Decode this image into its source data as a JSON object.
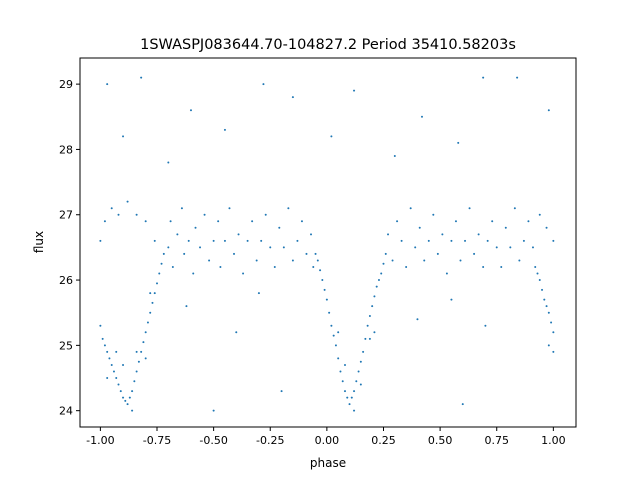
{
  "chart_data": {
    "type": "scatter",
    "title": "1SWASPJ083644.70-104827.2 Period 35410.58203s",
    "xlabel": "phase",
    "ylabel": "flux",
    "xlim": [
      -1.09,
      1.1
    ],
    "ylim": [
      23.75,
      29.4
    ],
    "xticks": [
      "-1.00",
      "-0.75",
      "-0.50",
      "-0.25",
      "0.00",
      "0.25",
      "0.50",
      "0.75",
      "1.00"
    ],
    "xtick_values": [
      -1.0,
      -0.75,
      -0.5,
      -0.25,
      0.0,
      0.25,
      0.5,
      0.75,
      1.0
    ],
    "yticks": [
      "24",
      "25",
      "26",
      "27",
      "28",
      "29"
    ],
    "ytick_values": [
      24,
      25,
      26,
      27,
      28,
      29
    ],
    "grid": false,
    "marker_color": "#1f77b4",
    "points": [
      [
        -1.0,
        25.3
      ],
      [
        -0.99,
        25.1
      ],
      [
        -0.98,
        25.0
      ],
      [
        -0.97,
        24.9
      ],
      [
        -0.96,
        24.8
      ],
      [
        -0.95,
        24.7
      ],
      [
        -0.94,
        24.6
      ],
      [
        -0.93,
        24.5
      ],
      [
        -0.92,
        24.4
      ],
      [
        -0.91,
        24.3
      ],
      [
        -0.9,
        24.2
      ],
      [
        -0.89,
        24.15
      ],
      [
        -0.88,
        24.1
      ],
      [
        -0.87,
        24.2
      ],
      [
        -0.86,
        24.3
      ],
      [
        -0.85,
        24.45
      ],
      [
        -0.84,
        24.6
      ],
      [
        -0.83,
        24.75
      ],
      [
        -0.82,
        24.9
      ],
      [
        -0.81,
        25.05
      ],
      [
        -0.8,
        25.2
      ],
      [
        -0.79,
        25.35
      ],
      [
        -0.78,
        25.5
      ],
      [
        -0.77,
        25.65
      ],
      [
        -0.76,
        25.8
      ],
      [
        -0.75,
        25.95
      ],
      [
        -0.74,
        26.1
      ],
      [
        -0.73,
        26.25
      ],
      [
        -0.72,
        26.4
      ],
      [
        -0.97,
        24.5
      ],
      [
        -0.93,
        24.9
      ],
      [
        -0.9,
        24.7
      ],
      [
        -0.86,
        24.0
      ],
      [
        -0.84,
        24.9
      ],
      [
        -0.8,
        24.8
      ],
      [
        -0.78,
        25.8
      ],
      [
        -0.05,
        26.4
      ],
      [
        -0.04,
        26.3
      ],
      [
        -0.03,
        26.15
      ],
      [
        -0.02,
        26.0
      ],
      [
        -0.01,
        25.85
      ],
      [
        0.0,
        25.7
      ],
      [
        0.01,
        25.5
      ],
      [
        0.02,
        25.3
      ],
      [
        0.03,
        25.15
      ],
      [
        0.04,
        25.0
      ],
      [
        0.05,
        24.8
      ],
      [
        0.06,
        24.6
      ],
      [
        0.07,
        24.45
      ],
      [
        0.08,
        24.3
      ],
      [
        0.09,
        24.2
      ],
      [
        0.1,
        24.1
      ],
      [
        0.11,
        24.2
      ],
      [
        0.12,
        24.3
      ],
      [
        0.13,
        24.45
      ],
      [
        0.14,
        24.6
      ],
      [
        0.15,
        24.75
      ],
      [
        0.16,
        24.9
      ],
      [
        0.17,
        25.1
      ],
      [
        0.18,
        25.3
      ],
      [
        0.19,
        25.45
      ],
      [
        0.2,
        25.6
      ],
      [
        0.21,
        25.75
      ],
      [
        0.22,
        25.9
      ],
      [
        0.23,
        26.0
      ],
      [
        0.24,
        26.1
      ],
      [
        0.25,
        26.25
      ],
      [
        0.26,
        26.4
      ],
      [
        0.05,
        25.2
      ],
      [
        0.08,
        24.7
      ],
      [
        0.12,
        24.0
      ],
      [
        0.15,
        24.4
      ],
      [
        0.19,
        25.1
      ],
      [
        0.21,
        25.2
      ],
      [
        0.92,
        26.2
      ],
      [
        0.93,
        26.1
      ],
      [
        0.94,
        26.0
      ],
      [
        0.95,
        25.85
      ],
      [
        0.96,
        25.7
      ],
      [
        0.97,
        25.6
      ],
      [
        0.98,
        25.5
      ],
      [
        0.99,
        25.35
      ],
      [
        1.0,
        25.2
      ],
      [
        0.98,
        25.0
      ],
      [
        1.0,
        24.9
      ],
      [
        -1.0,
        26.6
      ],
      [
        -0.98,
        26.9
      ],
      [
        -0.95,
        27.1
      ],
      [
        -0.92,
        27.0
      ],
      [
        -0.88,
        27.2
      ],
      [
        -0.84,
        27.0
      ],
      [
        -0.8,
        26.9
      ],
      [
        -0.76,
        26.6
      ],
      [
        -0.7,
        26.5
      ],
      [
        -0.69,
        26.9
      ],
      [
        -0.68,
        26.2
      ],
      [
        -0.66,
        26.7
      ],
      [
        -0.64,
        27.1
      ],
      [
        -0.63,
        26.4
      ],
      [
        -0.61,
        26.6
      ],
      [
        -0.59,
        26.1
      ],
      [
        -0.58,
        26.8
      ],
      [
        -0.56,
        26.5
      ],
      [
        -0.54,
        27.0
      ],
      [
        -0.52,
        26.3
      ],
      [
        -0.5,
        26.6
      ],
      [
        -0.48,
        26.9
      ],
      [
        -0.47,
        26.2
      ],
      [
        -0.45,
        26.6
      ],
      [
        -0.43,
        27.1
      ],
      [
        -0.41,
        26.4
      ],
      [
        -0.39,
        26.7
      ],
      [
        -0.37,
        26.1
      ],
      [
        -0.35,
        26.6
      ],
      [
        -0.33,
        26.9
      ],
      [
        -0.31,
        26.3
      ],
      [
        -0.29,
        26.6
      ],
      [
        -0.27,
        27.0
      ],
      [
        -0.25,
        26.5
      ],
      [
        -0.23,
        26.2
      ],
      [
        -0.21,
        26.8
      ],
      [
        -0.19,
        26.5
      ],
      [
        -0.17,
        27.1
      ],
      [
        -0.15,
        26.3
      ],
      [
        -0.13,
        26.6
      ],
      [
        -0.11,
        26.9
      ],
      [
        -0.09,
        26.4
      ],
      [
        -0.07,
        26.7
      ],
      [
        -0.06,
        26.2
      ],
      [
        0.27,
        26.7
      ],
      [
        0.29,
        26.3
      ],
      [
        0.31,
        26.9
      ],
      [
        0.33,
        26.6
      ],
      [
        0.35,
        26.2
      ],
      [
        0.37,
        27.1
      ],
      [
        0.39,
        26.5
      ],
      [
        0.41,
        26.8
      ],
      [
        0.43,
        26.3
      ],
      [
        0.45,
        26.6
      ],
      [
        0.47,
        27.0
      ],
      [
        0.49,
        26.4
      ],
      [
        0.51,
        26.7
      ],
      [
        0.53,
        26.1
      ],
      [
        0.55,
        26.6
      ],
      [
        0.57,
        26.9
      ],
      [
        0.59,
        26.3
      ],
      [
        0.61,
        26.6
      ],
      [
        0.63,
        27.1
      ],
      [
        0.65,
        26.4
      ],
      [
        0.67,
        26.7
      ],
      [
        0.69,
        26.2
      ],
      [
        0.71,
        26.6
      ],
      [
        0.73,
        26.9
      ],
      [
        0.75,
        26.5
      ],
      [
        0.77,
        26.2
      ],
      [
        0.79,
        26.8
      ],
      [
        0.81,
        26.5
      ],
      [
        0.83,
        27.1
      ],
      [
        0.85,
        26.3
      ],
      [
        0.87,
        26.6
      ],
      [
        0.89,
        26.9
      ],
      [
        0.91,
        26.5
      ],
      [
        0.94,
        27.0
      ],
      [
        0.97,
        26.8
      ],
      [
        1.0,
        26.6
      ],
      [
        -0.97,
        29.0
      ],
      [
        -0.82,
        29.1
      ],
      [
        -0.6,
        28.6
      ],
      [
        -0.45,
        28.3
      ],
      [
        -0.28,
        29.0
      ],
      [
        -0.15,
        28.8
      ],
      [
        0.02,
        28.2
      ],
      [
        0.12,
        28.9
      ],
      [
        0.42,
        28.5
      ],
      [
        0.58,
        28.1
      ],
      [
        0.69,
        29.1
      ],
      [
        0.84,
        29.1
      ],
      [
        0.98,
        28.6
      ],
      [
        -0.9,
        28.2
      ],
      [
        0.3,
        27.9
      ],
      [
        -0.7,
        27.8
      ],
      [
        -0.62,
        25.6
      ],
      [
        -0.4,
        25.2
      ],
      [
        -0.3,
        25.8
      ],
      [
        0.4,
        25.4
      ],
      [
        0.55,
        25.7
      ],
      [
        0.7,
        25.3
      ],
      [
        -0.2,
        24.3
      ],
      [
        0.6,
        24.1
      ],
      [
        -0.5,
        24.0
      ]
    ]
  }
}
